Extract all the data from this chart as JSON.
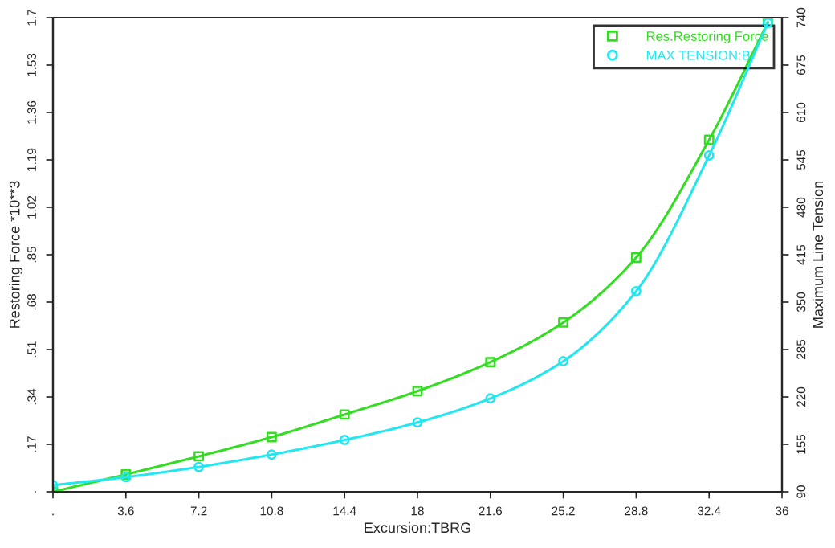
{
  "chart_data": {
    "type": "line",
    "xlabel": "Excursion:TBRG",
    "ylabel": "Restoring Force *10**3",
    "y2label": "Maximum Line Tension",
    "x": [
      0,
      3.6,
      7.2,
      10.8,
      14.4,
      18,
      21.6,
      25.2,
      28.8,
      32.4,
      35.3
    ],
    "series": [
      {
        "name": "Res.Restoring Force",
        "color": "#33dd22",
        "marker": "square",
        "values": [
          0,
          0.062,
          0.127,
          0.196,
          0.277,
          0.361,
          0.465,
          0.607,
          0.84,
          1.262,
          1.683
        ]
      },
      {
        "name": "MAX TENSION:B",
        "color": "#22e6f0",
        "marker": "circle",
        "axis": "y2",
        "values": [
          99,
          110,
          124,
          141,
          161,
          185,
          218,
          269,
          365,
          551,
          733
        ]
      }
    ],
    "xlim": [
      0,
      36
    ],
    "xticks": [
      {
        "value": 0,
        "label": "."
      },
      3.6,
      7.2,
      10.8,
      14.4,
      18,
      21.6,
      25.2,
      28.8,
      32.4,
      36
    ],
    "ylim": [
      0,
      1.7
    ],
    "yticks": [
      {
        "value": 0,
        "label": "."
      },
      {
        "value": 0.17,
        "label": ".17"
      },
      {
        "value": 0.34,
        "label": ".34"
      },
      {
        "value": 0.51,
        "label": ".51"
      },
      {
        "value": 0.68,
        "label": ".68"
      },
      {
        "value": 0.85,
        "label": ".85"
      },
      1.02,
      1.19,
      1.36,
      1.53,
      1.7
    ],
    "y2lim": [
      90,
      740
    ],
    "y2ticks": [
      90,
      155,
      220,
      285,
      350,
      415,
      480,
      545,
      610,
      675,
      740
    ],
    "legend": "top right",
    "grid": false,
    "line_style": "solid"
  }
}
